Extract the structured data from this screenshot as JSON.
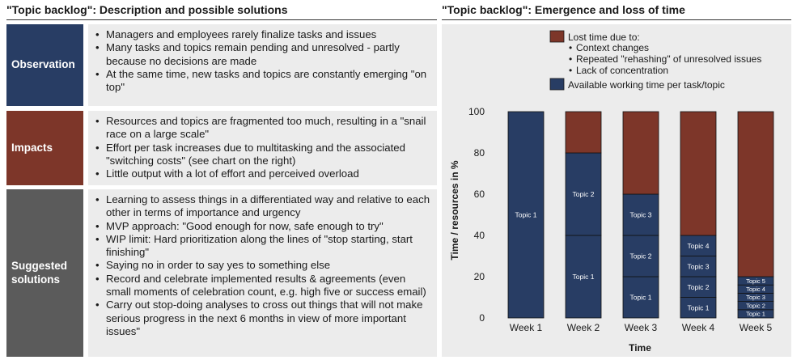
{
  "left": {
    "title": "\"Topic backlog\": Description and possible solutions",
    "rows": [
      {
        "label": "Observation",
        "color": "#283d64",
        "bullets": [
          "Managers and employees rarely finalize tasks and issues",
          "Many tasks and topics remain pending and unresolved - partly because no decisions are made",
          "At the same time, new tasks and topics are constantly emerging \"on top\""
        ]
      },
      {
        "label": "Impacts",
        "color": "#7d3629",
        "bullets": [
          "Resources and topics are fragmented too much, resulting in a \"snail race on a large scale\"",
          "Effort per task increases due to multitasking and the associated \"switching costs\" (see chart on the right)",
          "Little output with a lot of effort and perceived overload"
        ]
      },
      {
        "label": "Suggested solutions",
        "color": "#5b5b5b",
        "bullets": [
          "Learning to assess things in a differentiated way and relative to each other in terms of importance and urgency",
          "MVP approach: \"Good enough for now, safe enough to try\"",
          "WIP limit: Hard prioritization along the lines of \"stop starting, start finishing\"",
          "Saying no in order to say yes to something else",
          "Record and celebrate implemented results & agreements (even small moments of celebration count, e.g. high five or success email)",
          "Carry out stop-doing analyses to cross out things that will not make serious progress in the next 6 months in view of more important issues\""
        ]
      }
    ]
  },
  "right": {
    "title": "\"Topic backlog\": Emergence and loss of time"
  },
  "colors": {
    "lost_time": "#7d3629",
    "available_time": "#283d64",
    "panel": "#ececec"
  },
  "chart_data": {
    "type": "bar",
    "stacked": true,
    "categories": [
      "Week 1",
      "Week 2",
      "Week 3",
      "Week 4",
      "Week 5"
    ],
    "xlabel": "Time",
    "ylabel": "Time / resources in %",
    "ylim": [
      0,
      100
    ],
    "yticks": [
      0,
      20,
      40,
      60,
      80,
      100
    ],
    "grid": false,
    "legend": {
      "position": "top",
      "lost_label": "Lost time due to:",
      "lost_items": [
        "Context changes",
        "Repeated \"rehashing\" of unresolved issues",
        "Lack of concentration"
      ],
      "available_label": "Available working time per task/topic"
    },
    "bars": [
      {
        "segments": [
          {
            "label": "Topic 1",
            "value": 100
          }
        ],
        "lost": 0
      },
      {
        "segments": [
          {
            "label": "Topic 1",
            "value": 40
          },
          {
            "label": "Topic 2",
            "value": 40
          }
        ],
        "lost": 20
      },
      {
        "segments": [
          {
            "label": "Topic 1",
            "value": 20
          },
          {
            "label": "Topic 2",
            "value": 20
          },
          {
            "label": "Topic 3",
            "value": 20
          }
        ],
        "lost": 40
      },
      {
        "segments": [
          {
            "label": "Topic 1",
            "value": 10
          },
          {
            "label": "Topic 2",
            "value": 10
          },
          {
            "label": "Topic 3",
            "value": 10
          },
          {
            "label": "Topic 4",
            "value": 10
          }
        ],
        "lost": 60
      },
      {
        "segments": [
          {
            "label": "Topic 1",
            "value": 4
          },
          {
            "label": "Topic 2",
            "value": 4
          },
          {
            "label": "Topic 3",
            "value": 4
          },
          {
            "label": "Topic 4",
            "value": 4
          },
          {
            "label": "Topic 5",
            "value": 4
          }
        ],
        "lost": 80
      }
    ]
  }
}
